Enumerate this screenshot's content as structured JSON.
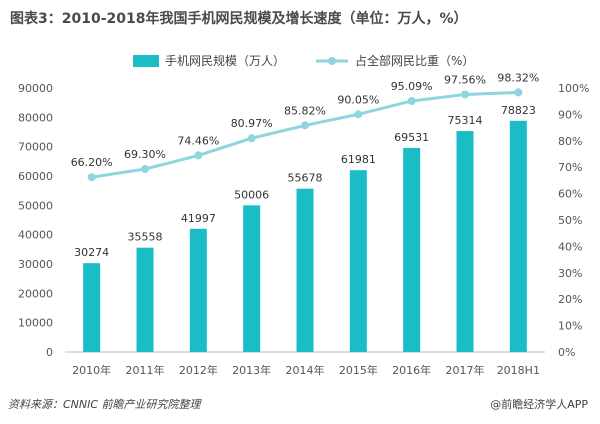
{
  "title": "图表3：2010-2018年我国手机网民规模及增长速度（单位：万人，%）",
  "source": "资料来源：CNNIC  前瞻产业研究院整理",
  "credit": "@前瞻经济学人APP",
  "colors": {
    "bar": "#1abcc6",
    "line": "#8dd5df"
  },
  "chart_data": {
    "type": "bar",
    "categories": [
      "2010年",
      "2011年",
      "2012年",
      "2013年",
      "2014年",
      "2015年",
      "2016年",
      "2017年",
      "2018H1"
    ],
    "series": [
      {
        "name": "手机网民规模（万人）",
        "type": "bar",
        "axis": "left",
        "values": [
          30274,
          35558,
          41997,
          50006,
          55678,
          61981,
          69531,
          75314,
          78823
        ]
      },
      {
        "name": "占全部网民比重（%）",
        "type": "line",
        "axis": "right",
        "values": [
          66.2,
          69.3,
          74.46,
          80.97,
          85.82,
          90.05,
          95.09,
          97.56,
          98.32
        ]
      }
    ],
    "bar_labels": [
      "30274",
      "35558",
      "41997",
      "50006",
      "55678",
      "61981",
      "69531",
      "75314",
      "78823"
    ],
    "line_labels": [
      "66.20%",
      "69.30%",
      "74.46%",
      "80.97%",
      "85.82%",
      "90.05%",
      "95.09%",
      "97.56%",
      "98.32%"
    ],
    "left_axis": {
      "range": [
        0,
        90000
      ],
      "ticks": [
        "0",
        "10000",
        "20000",
        "30000",
        "40000",
        "50000",
        "60000",
        "70000",
        "80000",
        "90000"
      ]
    },
    "right_axis": {
      "range": [
        0,
        100
      ],
      "ticks": [
        "0%",
        "10%",
        "20%",
        "30%",
        "40%",
        "50%",
        "60%",
        "70%",
        "80%",
        "90%",
        "100%"
      ]
    },
    "legend_position": "top",
    "grid": false
  }
}
